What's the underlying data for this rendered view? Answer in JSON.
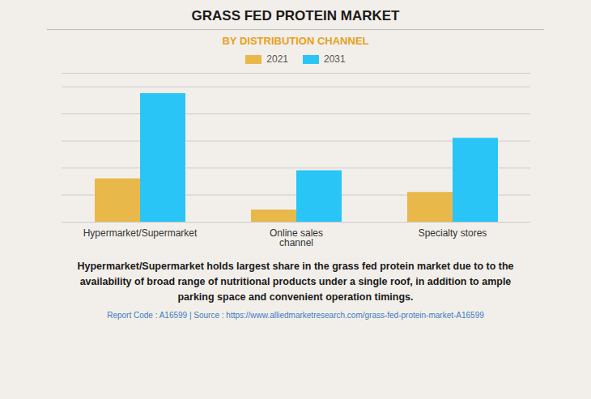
{
  "chart_data": {
    "type": "bar",
    "title": "GRASS FED PROTEIN MARKET",
    "subtitle": "BY DISTRIBUTION CHANNEL",
    "categories": [
      "Hypermarket/Supermarket",
      "Online sales\nchannel",
      "Specialty stores"
    ],
    "series": [
      {
        "name": "2021",
        "color": "#E8B84B",
        "values": [
          3.2,
          0.9,
          2.2
        ]
      },
      {
        "name": "2031",
        "color": "#29C5F6",
        "values": [
          9.5,
          3.8,
          6.2
        ]
      }
    ],
    "ylim": [
      0,
      11
    ],
    "yticks": [
      0,
      2,
      4,
      6,
      8,
      10
    ],
    "grid": true,
    "tick_labels": "x",
    "legend": "top",
    "annotations": [
      "Hypermarket/Supermarket holds largest share in the grass fed protein market due to to the\navailability of broad range of nutritional products under a single roof, in addition to ample\nparking space and convenient operation timings.",
      "Report Code : A16599  |  Source : https://www.alliedmarketresearch.com/grass-fed-protein-market-A16599"
    ]
  }
}
